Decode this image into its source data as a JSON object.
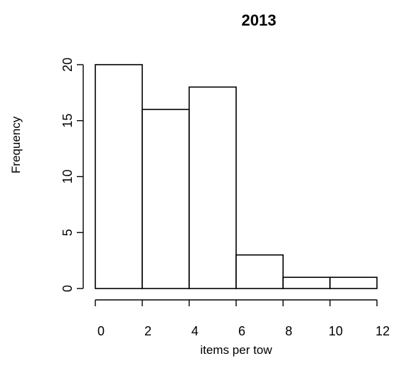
{
  "chart_data": {
    "type": "bar",
    "title": "2013",
    "xlabel": "items per tow",
    "ylabel": "Frequency",
    "bins": [
      {
        "from": 0,
        "to": 2,
        "count": 20
      },
      {
        "from": 2,
        "to": 4,
        "count": 16
      },
      {
        "from": 4,
        "to": 6,
        "count": 18
      },
      {
        "from": 6,
        "to": 8,
        "count": 3
      },
      {
        "from": 8,
        "to": 10,
        "count": 1
      },
      {
        "from": 10,
        "to": 12,
        "count": 1
      }
    ],
    "xlim": [
      0,
      12
    ],
    "ylim": [
      0,
      20
    ],
    "x_ticks": [
      0,
      2,
      4,
      6,
      8,
      10,
      12
    ],
    "y_ticks": [
      0,
      5,
      10,
      15,
      20
    ],
    "grid": false,
    "legend": "none",
    "bar_fill": "#ffffff",
    "bar_stroke": "#000000"
  }
}
